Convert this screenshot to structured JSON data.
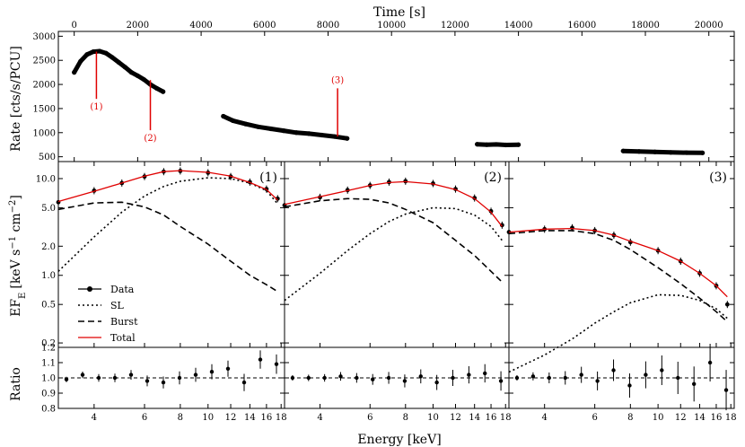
{
  "chart_data": [
    {
      "type": "scatter",
      "name": "light-curve",
      "top_xlabel": "Time [s]",
      "ylabel": "Rate [cts/s/PCU]",
      "xlim": [
        -500,
        20800
      ],
      "ylim": [
        400,
        3100
      ],
      "xticks": [
        0,
        2000,
        4000,
        6000,
        8000,
        10000,
        12000,
        14000,
        16000,
        18000,
        20000
      ],
      "yticks": [
        500,
        1000,
        1500,
        2000,
        2500,
        3000
      ],
      "segments": [
        {
          "t": [
            0,
            200,
            400,
            600,
            800,
            1000,
            1200,
            1400,
            1600,
            1800,
            2000,
            2200,
            2400,
            2600,
            2800
          ],
          "rate": [
            2250,
            2480,
            2620,
            2680,
            2690,
            2650,
            2560,
            2460,
            2360,
            2250,
            2180,
            2100,
            2000,
            1920,
            1850
          ]
        },
        {
          "t": [
            4700,
            5000,
            5400,
            5800,
            6200,
            6600,
            7000,
            7400,
            7800,
            8200,
            8600
          ],
          "rate": [
            1340,
            1250,
            1180,
            1120,
            1080,
            1040,
            1000,
            980,
            950,
            920,
            880
          ]
        },
        {
          "t": [
            12700,
            13000,
            13300,
            13600,
            14000
          ],
          "rate": [
            760,
            750,
            755,
            745,
            750
          ]
        },
        {
          "t": [
            17300,
            17800,
            18300,
            18800,
            19300,
            19800
          ],
          "rate": [
            620,
            610,
            600,
            590,
            585,
            580
          ]
        }
      ],
      "markers": [
        {
          "label": "(1)",
          "t": 700,
          "from": 1700,
          "to": 2680
        },
        {
          "label": "(2)",
          "t": 2400,
          "from": 1050,
          "to": 2090
        },
        {
          "label": "(3)",
          "t": 8300,
          "from": 920,
          "to": 1920
        }
      ]
    },
    {
      "type": "line",
      "name": "spectra",
      "ylabel": "EF_E [keV s^-1 cm^-2]",
      "ylabel_main": "EF",
      "ylabel_sub": "E",
      "ylabel_units": "[keV s",
      "ylabel_sup1": "−1",
      "ylabel_cm": " cm",
      "ylabel_sup2": "−2",
      "ylabel_close": "]",
      "xlabel": "Energy [keV]",
      "yscale": "log",
      "ylim": [
        0.18,
        15
      ],
      "xlim": [
        3,
        18.5
      ],
      "xscale": "log",
      "yticks": [
        "0.2",
        "0.5",
        "1.0",
        "2.0",
        "5.0",
        "10.0"
      ],
      "xticks": [
        "4",
        "6",
        "8",
        "10",
        "12",
        "14",
        "16",
        "18"
      ],
      "legend": {
        "position": "lower-left",
        "entries": [
          "Data",
          "SL",
          "Burst",
          "Total"
        ]
      },
      "panels": [
        {
          "label": "(1)",
          "energies": [
            3,
            4,
            5,
            6,
            7,
            8,
            10,
            12,
            14,
            16,
            17.5
          ],
          "data": [
            5.7,
            7.5,
            9.0,
            10.5,
            11.8,
            12.0,
            11.5,
            10.5,
            9.2,
            7.8,
            6.2
          ],
          "total": [
            5.8,
            7.4,
            9.0,
            10.6,
            11.8,
            12.1,
            11.6,
            10.6,
            9.1,
            7.7,
            6.0
          ],
          "sl": [
            1.1,
            2.5,
            4.5,
            6.6,
            8.3,
            9.4,
            10.2,
            10.0,
            9.0,
            7.5,
            5.5
          ],
          "burst": [
            4.8,
            5.6,
            5.7,
            5.1,
            4.2,
            3.2,
            2.1,
            1.4,
            1.0,
            0.8,
            0.68
          ],
          "ratio": [
            0.99,
            1.02,
            1.0,
            1.0,
            1.02,
            0.98,
            0.97,
            1.0,
            1.02,
            1.04,
            1.06,
            0.97,
            1.12,
            1.09
          ]
        },
        {
          "label": "(2)",
          "energies": [
            3,
            4,
            5,
            6,
            7,
            8,
            10,
            12,
            14,
            16,
            17.5
          ],
          "data": [
            5.3,
            6.4,
            7.6,
            8.5,
            9.2,
            9.4,
            8.9,
            7.8,
            6.3,
            4.6,
            3.3
          ],
          "total": [
            5.4,
            6.5,
            7.5,
            8.5,
            9.1,
            9.3,
            8.8,
            7.7,
            6.2,
            4.5,
            3.2
          ],
          "sl": [
            0.55,
            1.05,
            1.8,
            2.7,
            3.6,
            4.3,
            5.0,
            4.9,
            4.2,
            3.2,
            2.3
          ],
          "burst": [
            5.1,
            5.9,
            6.2,
            6.1,
            5.6,
            4.8,
            3.5,
            2.3,
            1.6,
            1.1,
            0.85
          ],
          "ratio": [
            1.0,
            1.0,
            1.0,
            1.01,
            1.0,
            0.99,
            1.0,
            0.98,
            1.01,
            0.97,
            1.0,
            1.02,
            1.03,
            0.98
          ]
        },
        {
          "label": "(3)",
          "energies": [
            3,
            4,
            5,
            6,
            7,
            8,
            10,
            12,
            14,
            16,
            17.5
          ],
          "data": [
            2.8,
            3.0,
            3.1,
            2.9,
            2.6,
            2.2,
            1.8,
            1.4,
            1.05,
            0.78,
            0.5
          ],
          "total": [
            2.8,
            3.0,
            3.05,
            2.9,
            2.6,
            2.25,
            1.8,
            1.4,
            1.05,
            0.78,
            0.6
          ],
          "sl": [
            0.1,
            0.15,
            0.22,
            0.32,
            0.42,
            0.52,
            0.63,
            0.62,
            0.55,
            0.45,
            0.36
          ],
          "burst": [
            2.7,
            2.9,
            2.9,
            2.7,
            2.3,
            1.85,
            1.2,
            0.82,
            0.58,
            0.42,
            0.33
          ],
          "ratio": [
            1.0,
            1.01,
            1.0,
            1.0,
            1.02,
            0.98,
            1.05,
            0.95,
            1.02,
            1.05,
            1.0,
            0.96,
            1.1,
            0.92
          ]
        }
      ]
    },
    {
      "type": "scatter",
      "name": "ratio",
      "ylabel": "Ratio",
      "ylim": [
        0.8,
        1.2
      ],
      "yticks": [
        "0.8",
        "0.9",
        "1.0",
        "1.1",
        "1.2"
      ],
      "reference": 1.0
    }
  ],
  "colors": {
    "total": "#e00000",
    "marker": "#e00000",
    "data": "#000000",
    "axis": "#000000"
  }
}
